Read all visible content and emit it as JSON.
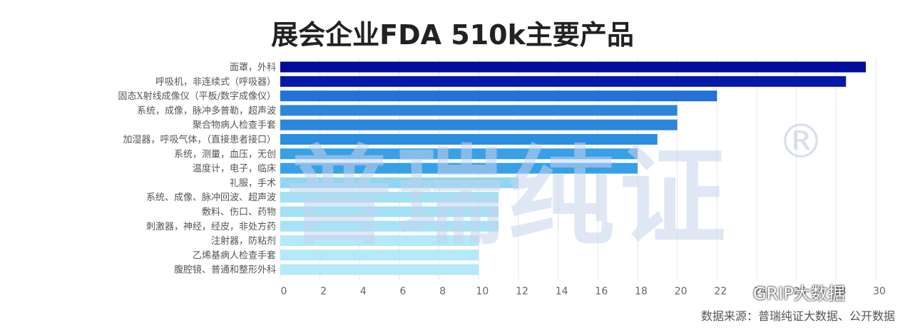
{
  "chart_data": {
    "type": "bar",
    "orientation": "horizontal",
    "title": "展会企业FDA 510k主要产品",
    "categories": [
      "面罩，外科",
      "呼吸机，非连续式（呼吸器）",
      "固态X射线成像仪（平板/数字成像仪）",
      "系统，成像，脉冲多普勒，超声波",
      "聚合物病人检查手套",
      "加湿器，呼吸气体，（直接患者接口）",
      "系统，测量，血压，无创",
      "温度计，电子，临床",
      "礼服，手术",
      "系统、成像、脉冲回波、超声波",
      "敷料、伤口、药物",
      "刺激器，神经，经皮，非处方药",
      "注射器，防粘剂",
      "乙烯基病人检查手套",
      "腹腔镜、普通和整形外科"
    ],
    "values": [
      29.5,
      28.5,
      22,
      20,
      20,
      19,
      18,
      18,
      12,
      11,
      11,
      11,
      10,
      10,
      10
    ],
    "bar_colors": [
      "#000c9a",
      "#0718a6",
      "#2272d8",
      "#2e86dc",
      "#2e86dc",
      "#2c8ee0",
      "#38a0e6",
      "#38a0e6",
      "#8fd6f4",
      "#a4e0f6",
      "#a4e0f6",
      "#a8e2f6",
      "#b5e8f8",
      "#b5e8f8",
      "#b5e8f8"
    ],
    "xlim": [
      0,
      30
    ],
    "xticks": [
      0,
      2,
      4,
      6,
      8,
      10,
      12,
      14,
      16,
      18,
      20,
      22,
      24,
      26,
      28,
      30
    ],
    "grid": true
  },
  "watermark": {
    "text": "普瑞纯证",
    "mark": "®",
    "color": "#c6d4ec"
  },
  "account_badge": {
    "icon": "wechat-icon",
    "text": "GRIP大数据"
  },
  "source_note": "数据来源：普瑞纯证大数据、公开数据"
}
